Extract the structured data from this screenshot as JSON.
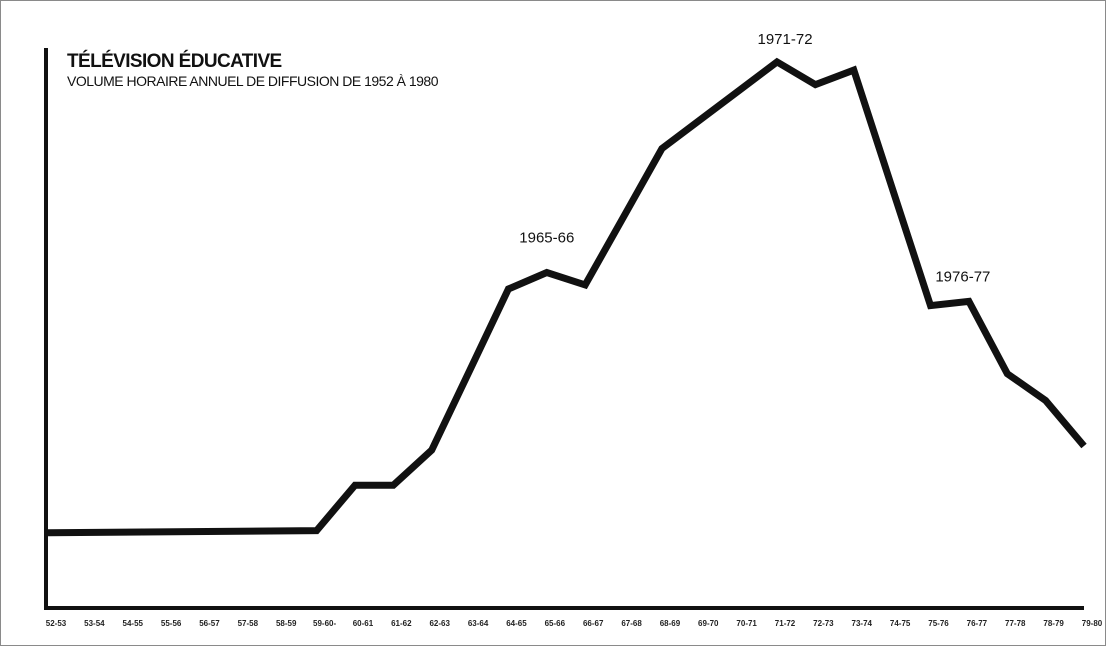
{
  "chart_data": {
    "type": "line",
    "title": "TÉLÉVISION ÉDUCATIVE",
    "subtitle": "VOLUME HORAIRE ANNUEL DE DIFFUSION DE 1952 À 1980",
    "xlabel": "",
    "ylabel": "",
    "grid": false,
    "legend": "none",
    "line_color": "#111111",
    "categories": [
      "52-53",
      "53-54",
      "54-55",
      "55-56",
      "56-57",
      "57-58",
      "58-59",
      "59-60",
      "60-61",
      "61-62",
      "62-63",
      "63-64",
      "64-65",
      "65-66",
      "66-67",
      "67-68",
      "68-69",
      "69-70",
      "70-71",
      "71-72",
      "72-73",
      "73-74",
      "74-75",
      "75-76",
      "76-77",
      "77-78",
      "78-79",
      "79-80"
    ],
    "tick_labels": [
      "52-53",
      "53-54",
      "54-55",
      "55-56",
      "56-57",
      "57-58",
      "58-59",
      "59-60",
      "60-61",
      "61-62",
      "62-63",
      "63-64",
      "64-65",
      "65-66",
      "66-67",
      "67-68",
      "68-69",
      "69-70",
      "70-71",
      "71-72",
      "72-73",
      "73-74",
      "74-75",
      "75-76",
      "76-77",
      "77-78",
      "78-79",
      "79-80"
    ],
    "tick_label_59_60": "59-60-",
    "points": [
      {
        "x": "52-53",
        "y": 10
      },
      {
        "x": "59-60",
        "y": 10.5
      },
      {
        "x": "60-61",
        "y": 21.5
      },
      {
        "x": "61-62",
        "y": 21.5
      },
      {
        "x": "62-63",
        "y": 30
      },
      {
        "x": "63-64",
        "y": 49.5
      },
      {
        "x": "64-65",
        "y": 69
      },
      {
        "x": "65-66",
        "y": 73
      },
      {
        "x": "66-67",
        "y": 70
      },
      {
        "x": "67-68",
        "y": 86.5
      },
      {
        "x": "68-69",
        "y": 103
      },
      {
        "x": "69-70",
        "y": 110
      },
      {
        "x": "70-71",
        "y": 117
      },
      {
        "x": "71-72",
        "y": 124
      },
      {
        "x": "72-73",
        "y": 118.5
      },
      {
        "x": "73-74",
        "y": 122
      },
      {
        "x": "74-75",
        "y": 93.5
      },
      {
        "x": "75-76",
        "y": 65
      },
      {
        "x": "76-77",
        "y": 66
      },
      {
        "x": "77-78",
        "y": 48.5
      },
      {
        "x": "78-79",
        "y": 42
      },
      {
        "x": "79-80",
        "y": 31
      }
    ],
    "ylim": [
      0,
      135
    ],
    "annotations": [
      {
        "text": "1965-66",
        "x": "65-66"
      },
      {
        "text": "1971-72",
        "x": "71-72"
      },
      {
        "text": "1976-77",
        "x": "76-77"
      }
    ]
  }
}
